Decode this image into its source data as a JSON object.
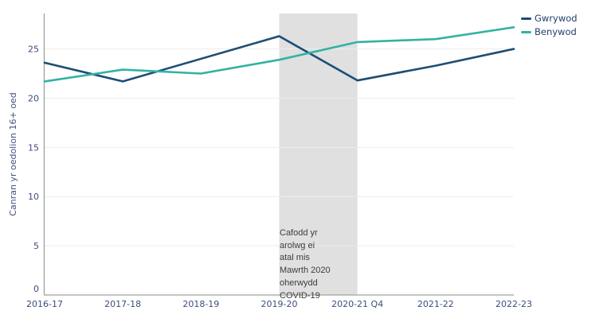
{
  "chart_data": {
    "type": "line",
    "title": "",
    "xlabel": "",
    "ylabel": "Canran yr oedolion 16+ oed",
    "categories": [
      "2016-17",
      "2017-18",
      "2018-19",
      "2019-20",
      "2020-21 Q4",
      "2021-22",
      "2022-23"
    ],
    "series": [
      {
        "name": "Gwrywod",
        "color": "#1d4d74",
        "values": [
          23.6,
          21.7,
          24.0,
          26.3,
          21.8,
          23.3,
          25.0
        ]
      },
      {
        "name": "Benywod",
        "color": "#33b2a2",
        "values": [
          21.7,
          22.9,
          22.5,
          23.9,
          25.7,
          26.0,
          27.2
        ]
      }
    ],
    "yticks": [
      0,
      5,
      10,
      15,
      20,
      25
    ],
    "ylim": [
      0,
      28.6
    ],
    "grid": true,
    "legend_position": "top-right",
    "shaded_region": {
      "from_category": "2019-20",
      "to_category": "2020-21 Q4",
      "color": "#e0e0e0"
    },
    "annotation_text": "Cafodd yr\narolwg ei\natal mis\nMawrth 2020\noherwydd\nCOVID-19",
    "colors": {
      "gridline": "#ededed",
      "axis": "#a0a0a0",
      "tick_text": "#3d4e7c",
      "legend_text": "#21416b",
      "annotation_text_color": "#3c3c3c"
    }
  }
}
